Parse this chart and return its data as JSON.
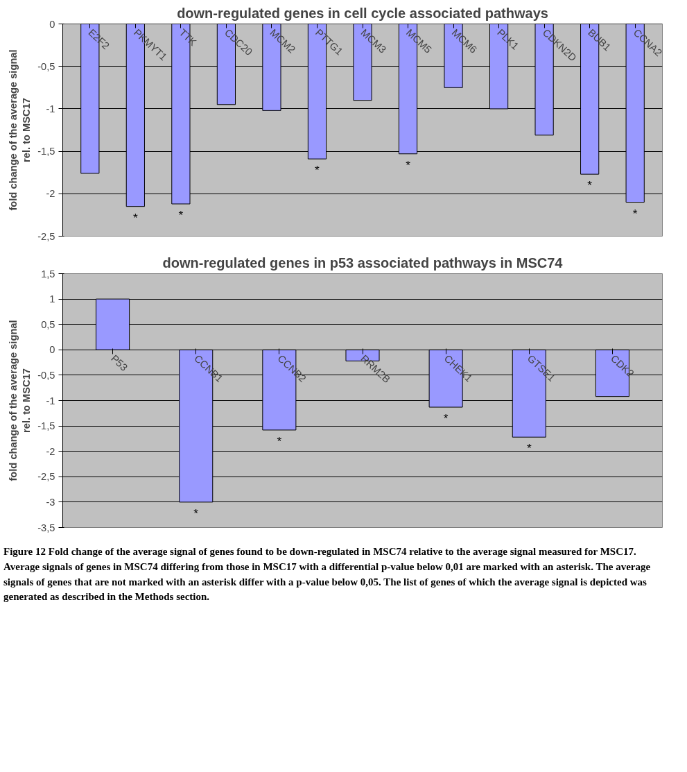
{
  "chart_data": [
    {
      "type": "bar",
      "title": "down-regulated genes in cell cycle associated pathways",
      "ylabel": "fold change of the average signal\nrel. to MSC17",
      "categories": [
        "E2F2",
        "PKMYT1",
        "TTK",
        "CDC20",
        "MCM2",
        "PTTG1",
        "MCM3",
        "MCM5",
        "MCM6",
        "PLK1",
        "CDKN2D",
        "BUB1",
        "CCNA2"
      ],
      "values": [
        -1.76,
        -2.15,
        -2.12,
        -0.95,
        -1.02,
        -1.59,
        -0.9,
        -1.53,
        -0.75,
        -1.0,
        -1.31,
        -1.77,
        -2.1
      ],
      "color": "#9999ff",
      "ylim": [
        -2.5,
        0
      ],
      "yticks": [
        {
          "value": -2.5,
          "label": "-2,5"
        },
        -2,
        {
          "value": -1.5,
          "label": "-1,5"
        },
        -1,
        {
          "value": -0.5,
          "label": "-0,5"
        },
        0
      ],
      "grid": "y",
      "annotations": [
        {
          "text": "*",
          "x": "PKMYT1",
          "y": -2.15
        },
        {
          "text": "*",
          "x": "TTK",
          "y": -2.12
        },
        {
          "text": "*",
          "x": "PTTG1",
          "y": -1.59
        },
        {
          "text": "*",
          "x": "MCM5",
          "y": -1.53
        },
        {
          "text": "*",
          "x": "BUB1",
          "y": -1.77
        },
        {
          "text": "*",
          "x": "CCNA2",
          "y": -2.1
        }
      ]
    },
    {
      "type": "bar",
      "title": "down-regulated genes in p53 associated pathways in MSC74",
      "ylabel": "fold change of the average signal\nrel. to MSC17",
      "categories": [
        "P53",
        "CCNB1",
        "CCNB2",
        "RRM2B",
        "CHEK1",
        "GTSE1",
        "CDK2"
      ],
      "values": [
        1.0,
        -3.0,
        -1.58,
        -0.22,
        -1.13,
        -1.72,
        -0.92
      ],
      "color": "#9999ff",
      "ylim": [
        -3.5,
        1.5
      ],
      "yticks": [
        {
          "value": -3.5,
          "label": "-3,5"
        },
        -3,
        {
          "value": -2.5,
          "label": "-2,5"
        },
        -2,
        {
          "value": -1.5,
          "label": "-1,5"
        },
        -1,
        {
          "value": -0.5,
          "label": "-0,5"
        },
        0,
        {
          "value": 0.5,
          "label": "0,5"
        },
        1,
        {
          "value": 1.5,
          "label": "1,5"
        }
      ],
      "grid": "y",
      "annotations": [
        {
          "text": "*",
          "x": "CCNB1",
          "y": -3.0
        },
        {
          "text": "*",
          "x": "CCNB2",
          "y": -1.58
        },
        {
          "text": "*",
          "x": "CHEK1",
          "y": -1.13
        },
        {
          "text": "*",
          "x": "GTSE1",
          "y": -1.72
        },
        "Figure 12 Fold change of the average signal of genes found to be down-regulated in MSC74 relative to the average signal measured for MSC17. Average signals of genes in MSC74 differing from those in MSC17 with a differential p-value below 0,01 are marked with an asterisk. The average signals of genes that are not marked with an asterisk differ with a p-value below 0,05. The list of genes of which the average signal is depicted was generated as described in the Methods section."
      ]
    }
  ]
}
